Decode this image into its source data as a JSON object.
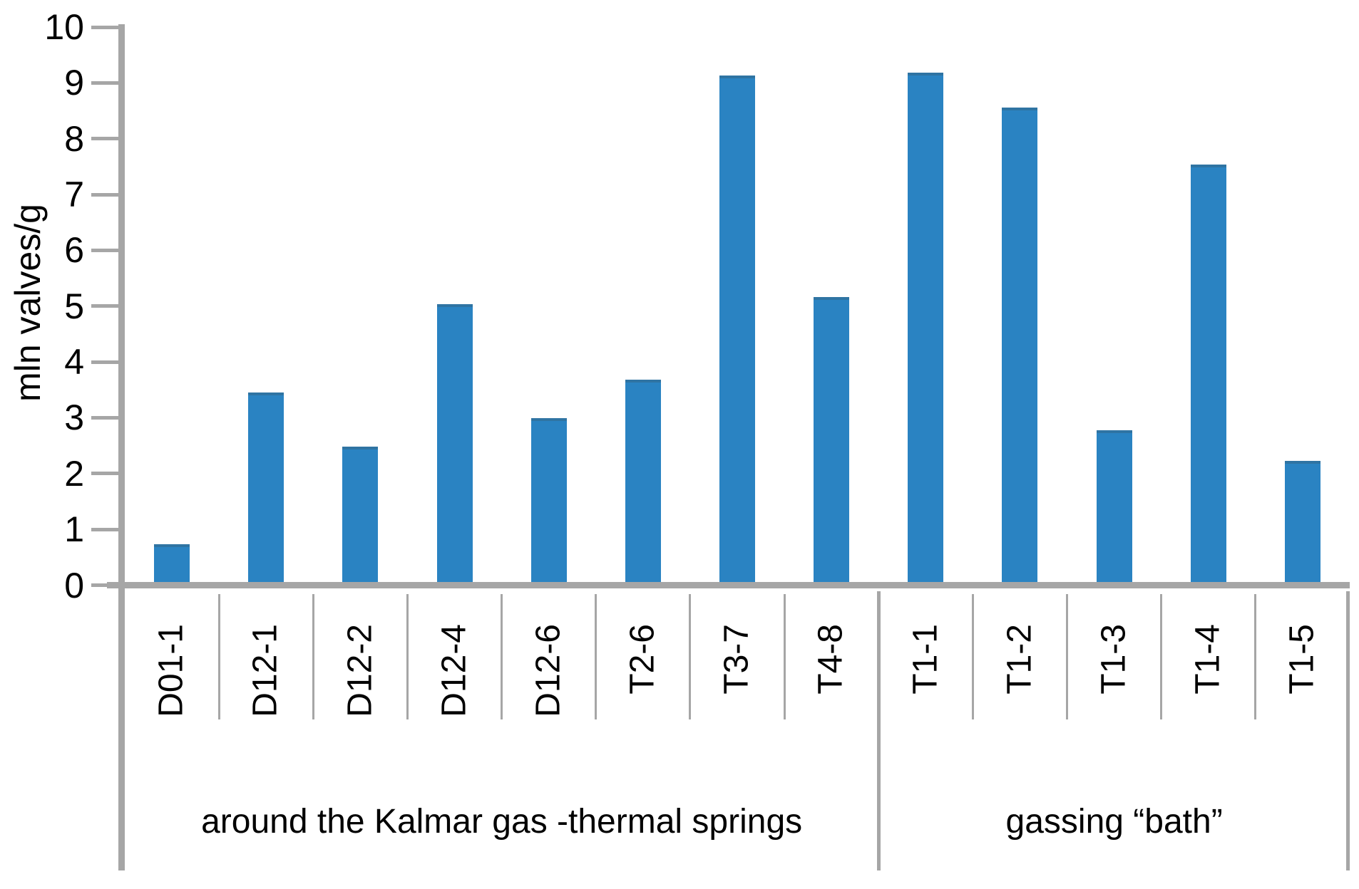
{
  "chart_data": {
    "type": "bar",
    "title": "",
    "xlabel": "",
    "ylabel": "mln valves/g",
    "ylim": [
      0,
      10
    ],
    "ytick_step": 1,
    "yticks": [
      0,
      1,
      2,
      3,
      4,
      5,
      6,
      7,
      8,
      9,
      10
    ],
    "grid": false,
    "legend": false,
    "bar_color": "#2a83c2",
    "bar_top_edge_color": "#2f74a3",
    "axis_color": "#a6a6a6",
    "categories": [
      "D01-1",
      "D12-1",
      "D12-2",
      "D12-4",
      "D12-6",
      "T2-6",
      "T3-7",
      "T4-8",
      "T1-1",
      "T1-2",
      "T1-3",
      "T1-4",
      "T1-5"
    ],
    "values": [
      0.68,
      3.39,
      2.42,
      4.98,
      2.94,
      3.62,
      9.07,
      5.1,
      9.13,
      8.5,
      2.72,
      7.48,
      2.17
    ],
    "groups": [
      {
        "label": "around the Kalmar gas -thermal springs",
        "start": 0,
        "count": 8
      },
      {
        "label": "gassing “bath”",
        "start": 8,
        "count": 5
      }
    ]
  }
}
